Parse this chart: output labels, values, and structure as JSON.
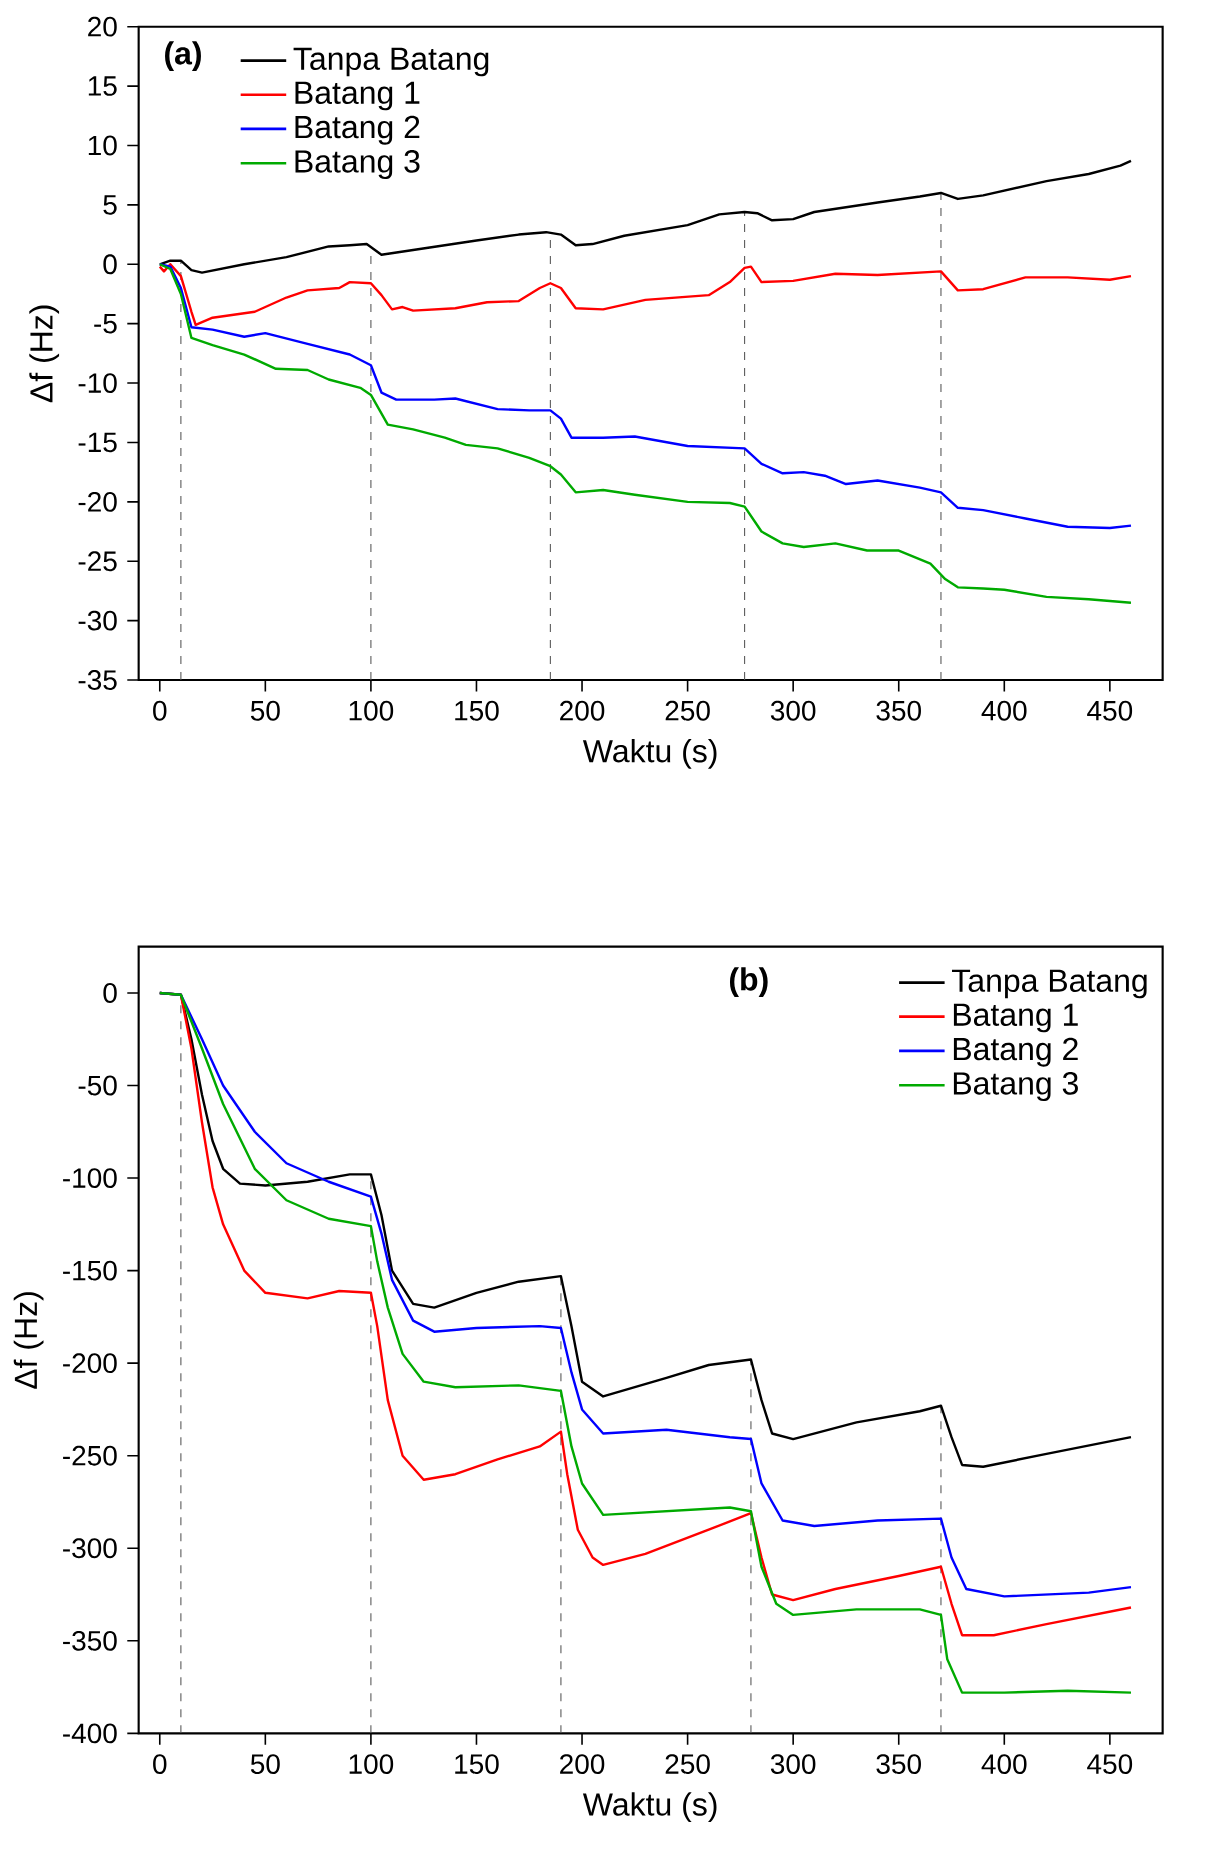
{
  "chart_data": [
    {
      "type": "line",
      "title": "(a)",
      "xlabel": "Waktu (s)",
      "ylabel": "Δf (Hz)",
      "xlim": [
        -10,
        475
      ],
      "ylim": [
        -35,
        20
      ],
      "xticks": [
        0,
        50,
        100,
        150,
        200,
        250,
        300,
        350,
        400,
        450
      ],
      "yticks": [
        -35,
        -30,
        -25,
        -20,
        -15,
        -10,
        -5,
        0,
        5,
        10,
        15,
        20
      ],
      "grid": false,
      "legend": "top left",
      "line_style": "solid",
      "marker": "none",
      "ref_lines": [
        {
          "axis": "x",
          "value": 10,
          "color": "#555555",
          "line_style": "dashed"
        },
        {
          "axis": "x",
          "value": 100,
          "color": "#555555",
          "line_style": "dashed"
        },
        {
          "axis": "x",
          "value": 185,
          "color": "#555555",
          "line_style": "dashed"
        },
        {
          "axis": "x",
          "value": 277,
          "color": "#555555",
          "line_style": "dashed"
        },
        {
          "axis": "x",
          "value": 370,
          "color": "#555555",
          "line_style": "dashed"
        }
      ],
      "series": [
        {
          "name": "Tanpa Batang",
          "color": "#000000",
          "x": [
            0,
            5,
            10,
            15,
            20,
            40,
            60,
            80,
            90,
            98,
            105,
            120,
            150,
            170,
            183,
            190,
            197,
            205,
            220,
            250,
            265,
            277,
            283,
            290,
            300,
            310,
            340,
            360,
            370,
            378,
            390,
            420,
            440,
            455,
            460
          ],
          "values": [
            0,
            0.3,
            0.3,
            -0.5,
            -0.7,
            0,
            0.6,
            1.5,
            1.6,
            1.7,
            0.8,
            1.2,
            2,
            2.5,
            2.7,
            2.5,
            1.6,
            1.7,
            2.4,
            3.3,
            4.2,
            4.4,
            4.3,
            3.7,
            3.8,
            4.4,
            5.2,
            5.7,
            6,
            5.5,
            5.8,
            7,
            7.6,
            8.3,
            8.7
          ]
        },
        {
          "name": "Batang 1",
          "color": "#ff0000",
          "x": [
            0,
            2,
            5,
            10,
            15,
            17,
            25,
            45,
            60,
            70,
            85,
            90,
            100,
            105,
            110,
            115,
            120,
            140,
            155,
            170,
            180,
            185,
            190,
            197,
            210,
            230,
            260,
            270,
            277,
            280,
            285,
            300,
            320,
            340,
            370,
            378,
            390,
            410,
            430,
            450,
            460
          ],
          "values": [
            -0.2,
            -0.6,
            0,
            -1,
            -4,
            -5.1,
            -4.5,
            -4,
            -2.8,
            -2.2,
            -2,
            -1.5,
            -1.6,
            -2.6,
            -3.8,
            -3.6,
            -3.9,
            -3.7,
            -3.2,
            -3.1,
            -2,
            -1.6,
            -2,
            -3.7,
            -3.8,
            -3,
            -2.6,
            -1.5,
            -0.3,
            -0.2,
            -1.5,
            -1.4,
            -0.8,
            -0.9,
            -0.6,
            -2.2,
            -2.1,
            -1.1,
            -1.1,
            -1.3,
            -1
          ]
        },
        {
          "name": "Batang 2",
          "color": "#0000ff",
          "x": [
            0,
            5,
            10,
            15,
            25,
            40,
            50,
            70,
            90,
            100,
            105,
            112,
            130,
            140,
            160,
            175,
            185,
            190,
            195,
            210,
            225,
            250,
            277,
            285,
            295,
            305,
            315,
            325,
            340,
            360,
            370,
            378,
            390,
            410,
            430,
            450,
            460
          ],
          "values": [
            0,
            -0.2,
            -2,
            -5.3,
            -5.5,
            -6.1,
            -5.8,
            -6.7,
            -7.6,
            -8.5,
            -10.8,
            -11.4,
            -11.4,
            -11.3,
            -12.2,
            -12.3,
            -12.3,
            -13,
            -14.6,
            -14.6,
            -14.5,
            -15.3,
            -15.5,
            -16.8,
            -17.6,
            -17.5,
            -17.8,
            -18.5,
            -18.2,
            -18.8,
            -19.2,
            -20.5,
            -20.7,
            -21.4,
            -22.1,
            -22.2,
            -22
          ]
        },
        {
          "name": "Batang 3",
          "color": "#00aa00",
          "x": [
            0,
            5,
            10,
            15,
            25,
            40,
            55,
            70,
            80,
            95,
            100,
            108,
            120,
            135,
            145,
            160,
            175,
            185,
            190,
            197,
            210,
            225,
            250,
            270,
            277,
            285,
            295,
            305,
            320,
            335,
            350,
            365,
            372,
            378,
            390,
            400,
            420,
            440,
            460
          ],
          "values": [
            0,
            -0.4,
            -2.5,
            -6.2,
            -6.8,
            -7.6,
            -8.8,
            -8.9,
            -9.7,
            -10.4,
            -11,
            -13.5,
            -13.9,
            -14.6,
            -15.2,
            -15.5,
            -16.3,
            -17,
            -17.7,
            -19.2,
            -19,
            -19.4,
            -20,
            -20.1,
            -20.4,
            -22.5,
            -23.5,
            -23.8,
            -23.5,
            -24.1,
            -24.1,
            -25.2,
            -26.5,
            -27.2,
            -27.3,
            -27.4,
            -28,
            -28.2,
            -28.5
          ]
        }
      ]
    },
    {
      "type": "line",
      "title": "(b)",
      "xlabel": "Waktu (s)",
      "ylabel": "Δf (Hz)",
      "xlim": [
        -10,
        475
      ],
      "ylim": [
        -400,
        25
      ],
      "xticks": [
        0,
        50,
        100,
        150,
        200,
        250,
        300,
        350,
        400,
        450
      ],
      "yticks": [
        -400,
        -350,
        -300,
        -250,
        -200,
        -150,
        -100,
        -50,
        0
      ],
      "grid": false,
      "legend": "top right",
      "line_style": "solid",
      "marker": "none",
      "ref_lines": [
        {
          "axis": "x",
          "value": 10,
          "color": "#555555",
          "line_style": "dashed"
        },
        {
          "axis": "x",
          "value": 100,
          "color": "#555555",
          "line_style": "dashed"
        },
        {
          "axis": "x",
          "value": 190,
          "color": "#555555",
          "line_style": "dashed"
        },
        {
          "axis": "x",
          "value": 280,
          "color": "#555555",
          "line_style": "dashed"
        },
        {
          "axis": "x",
          "value": 370,
          "color": "#555555",
          "line_style": "dashed"
        }
      ],
      "series": [
        {
          "name": "Tanpa Batang",
          "color": "#000000",
          "x": [
            0,
            10,
            15,
            20,
            25,
            30,
            38,
            50,
            70,
            90,
            100,
            105,
            110,
            120,
            130,
            150,
            170,
            190,
            195,
            200,
            210,
            240,
            260,
            280,
            285,
            290,
            300,
            330,
            360,
            370,
            375,
            380,
            390,
            420,
            460
          ],
          "values": [
            0,
            -1,
            -25,
            -55,
            -80,
            -95,
            -103,
            -104,
            -102,
            -98,
            -98,
            -120,
            -150,
            -168,
            -170,
            -162,
            -156,
            -153,
            -180,
            -210,
            -218,
            -208,
            -201,
            -198,
            -220,
            -238,
            -241,
            -232,
            -226,
            -223,
            -240,
            -255,
            -256,
            -249,
            -240
          ]
        },
        {
          "name": "Batang 1",
          "color": "#ff0000",
          "x": [
            0,
            10,
            15,
            20,
            25,
            30,
            40,
            50,
            70,
            85,
            100,
            103,
            108,
            115,
            125,
            140,
            160,
            180,
            190,
            193,
            198,
            205,
            210,
            230,
            260,
            280,
            285,
            290,
            300,
            320,
            350,
            370,
            375,
            380,
            395,
            420,
            460
          ],
          "values": [
            0,
            -1,
            -30,
            -70,
            -105,
            -125,
            -150,
            -162,
            -165,
            -161,
            -162,
            -180,
            -220,
            -250,
            -263,
            -260,
            -252,
            -245,
            -237,
            -260,
            -290,
            -305,
            -309,
            -303,
            -290,
            -281,
            -305,
            -325,
            -328,
            -322,
            -315,
            -310,
            -330,
            -347,
            -347,
            -341,
            -332
          ]
        },
        {
          "name": "Batang 2",
          "color": "#0000ff",
          "x": [
            0,
            10,
            20,
            30,
            45,
            60,
            80,
            100,
            105,
            110,
            120,
            130,
            150,
            180,
            190,
            195,
            200,
            210,
            240,
            270,
            280,
            285,
            295,
            310,
            340,
            370,
            375,
            382,
            400,
            440,
            460
          ],
          "values": [
            0,
            -1,
            -25,
            -50,
            -75,
            -92,
            -102,
            -110,
            -130,
            -155,
            -177,
            -183,
            -181,
            -180,
            -181,
            -205,
            -225,
            -238,
            -236,
            -240,
            -241,
            -265,
            -285,
            -288,
            -285,
            -284,
            -305,
            -322,
            -326,
            -324,
            -321
          ]
        },
        {
          "name": "Batang 3",
          "color": "#00aa00",
          "x": [
            0,
            10,
            20,
            30,
            45,
            60,
            80,
            100,
            103,
            108,
            115,
            125,
            140,
            170,
            190,
            195,
            200,
            210,
            240,
            270,
            280,
            285,
            292,
            300,
            330,
            360,
            370,
            373,
            380,
            400,
            430,
            460
          ],
          "values": [
            0,
            -1,
            -30,
            -60,
            -95,
            -112,
            -122,
            -126,
            -145,
            -170,
            -195,
            -210,
            -213,
            -212,
            -215,
            -245,
            -265,
            -282,
            -280,
            -278,
            -280,
            -310,
            -330,
            -336,
            -333,
            -333,
            -336,
            -360,
            -378,
            -378,
            -377,
            -378
          ]
        }
      ]
    }
  ]
}
